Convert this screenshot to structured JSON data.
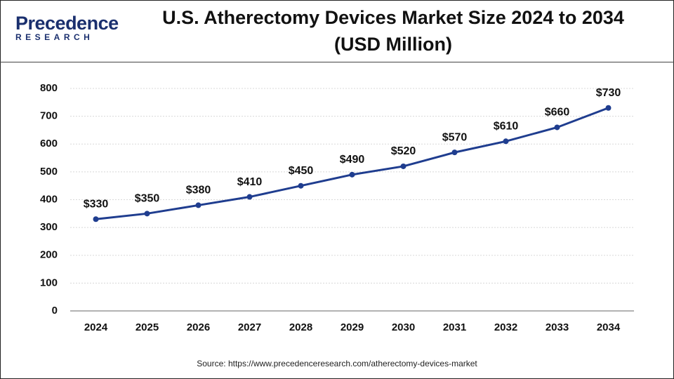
{
  "logo": {
    "name": "Precedence",
    "tagline": "RESEARCH"
  },
  "chart_data": {
    "type": "line",
    "title": "U.S. Atherectomy Devices Market Size 2024 to 2034 (USD Million)",
    "categories": [
      "2024",
      "2025",
      "2026",
      "2027",
      "2028",
      "2029",
      "2030",
      "2031",
      "2032",
      "2033",
      "2034"
    ],
    "values": [
      330,
      350,
      380,
      410,
      450,
      490,
      520,
      570,
      610,
      660,
      730
    ],
    "value_labels": [
      "$330",
      "$350",
      "$380",
      "$410",
      "$450",
      "$490",
      "$520",
      "$570",
      "$610",
      "$660",
      "$730"
    ],
    "color": "#1f3d8f",
    "ylim": [
      0,
      800
    ],
    "yticks": [
      0,
      100,
      200,
      300,
      400,
      500,
      600,
      700,
      800
    ],
    "grid": true,
    "source": "Source: https://www.precedenceresearch.com/atherectomy-devices-market"
  }
}
